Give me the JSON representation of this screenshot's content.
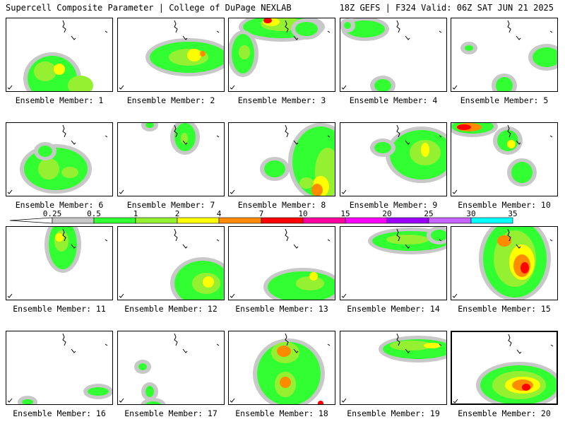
{
  "header": {
    "title": "Supercell Composite Parameter | College of DuPage NEXLAB",
    "run_info": "18Z GEFS | F324 Valid: 06Z SAT JUN 21 2025"
  },
  "panel_label_prefix": "Ensemble Member: ",
  "members": [
    {
      "label": "Ensemble Member: 1",
      "blobs": [
        [
          65,
          85,
          35,
          32,
          1
        ],
        [
          55,
          75,
          16,
          14,
          2
        ],
        [
          105,
          95,
          18,
          14,
          2
        ],
        [
          75,
          72,
          8,
          8,
          3
        ]
      ]
    },
    {
      "label": "Ensemble Member: 2",
      "blobs": [
        [
          100,
          55,
          55,
          22,
          1
        ],
        [
          100,
          55,
          28,
          12,
          2
        ],
        [
          108,
          52,
          10,
          9,
          3
        ],
        [
          120,
          50,
          4,
          4,
          4
        ]
      ]
    },
    {
      "label": "Ensemble Member: 3",
      "blobs": [
        [
          75,
          12,
          55,
          16,
          1
        ],
        [
          75,
          8,
          30,
          10,
          2
        ],
        [
          60,
          5,
          12,
          6,
          3
        ],
        [
          55,
          3,
          6,
          4,
          5
        ],
        [
          20,
          50,
          16,
          28,
          1
        ],
        [
          22,
          48,
          8,
          10,
          2
        ],
        [
          110,
          15,
          16,
          10,
          1
        ]
      ]
    },
    {
      "label": "Ensemble Member: 4",
      "blobs": [
        [
          35,
          15,
          28,
          12,
          1
        ],
        [
          60,
          95,
          12,
          9,
          1
        ],
        [
          10,
          10,
          5,
          5,
          1
        ]
      ]
    },
    {
      "label": "Ensemble Member: 5",
      "blobs": [
        [
          135,
          55,
          20,
          14,
          1
        ],
        [
          75,
          95,
          12,
          12,
          1
        ],
        [
          25,
          42,
          6,
          4,
          1
        ]
      ]
    },
    {
      "label": "Ensemble Member: 6",
      "blobs": [
        [
          70,
          65,
          45,
          30,
          1
        ],
        [
          60,
          65,
          15,
          15,
          2
        ],
        [
          90,
          70,
          12,
          8,
          2
        ],
        [
          55,
          40,
          10,
          8,
          1
        ]
      ]
    },
    {
      "label": "Ensemble Member: 7",
      "blobs": [
        [
          95,
          20,
          15,
          20,
          1
        ],
        [
          94,
          22,
          5,
          8,
          2
        ],
        [
          45,
          3,
          6,
          4,
          1
        ]
      ]
    },
    {
      "label": "Ensemble Member: 8",
      "blobs": [
        [
          130,
          55,
          40,
          50,
          1
        ],
        [
          140,
          70,
          18,
          35,
          2
        ],
        [
          130,
          90,
          12,
          15,
          3
        ],
        [
          125,
          95,
          8,
          9,
          4
        ],
        [
          65,
          65,
          15,
          12,
          1
        ],
        [
          110,
          85,
          10,
          8,
          2
        ]
      ]
    },
    {
      "label": "Ensemble Member: 9",
      "blobs": [
        [
          115,
          45,
          45,
          35,
          1
        ],
        [
          120,
          42,
          22,
          18,
          2
        ],
        [
          60,
          35,
          12,
          8,
          1
        ],
        [
          120,
          38,
          6,
          10,
          3
        ]
      ]
    },
    {
      "label": "Ensemble Member: 10",
      "blobs": [
        [
          30,
          5,
          30,
          10,
          1
        ],
        [
          25,
          6,
          18,
          6,
          4
        ],
        [
          18,
          6,
          10,
          4,
          5
        ],
        [
          80,
          25,
          15,
          15,
          1
        ],
        [
          85,
          30,
          6,
          6,
          3
        ],
        [
          100,
          70,
          15,
          15,
          1
        ]
      ]
    },
    {
      "label": "Ensemble Member: 11",
      "blobs": [
        [
          80,
          25,
          20,
          35,
          1
        ],
        [
          78,
          20,
          10,
          15,
          2
        ],
        [
          75,
          15,
          6,
          6,
          3
        ]
      ]
    },
    {
      "label": "Ensemble Member: 12",
      "blobs": [
        [
          120,
          80,
          40,
          32,
          1
        ],
        [
          125,
          80,
          20,
          15,
          2
        ],
        [
          128,
          78,
          8,
          8,
          3
        ]
      ]
    },
    {
      "label": "Ensemble Member: 13",
      "blobs": [
        [
          105,
          85,
          50,
          22,
          1
        ],
        [
          115,
          80,
          20,
          10,
          2
        ],
        [
          120,
          70,
          6,
          6,
          3
        ]
      ]
    },
    {
      "label": "Ensemble Member: 14",
      "blobs": [
        [
          100,
          20,
          55,
          14,
          1
        ],
        [
          95,
          18,
          30,
          7,
          2
        ],
        [
          140,
          12,
          12,
          8,
          1
        ]
      ]
    },
    {
      "label": "Ensemble Member: 15",
      "blobs": [
        [
          90,
          45,
          45,
          55,
          1
        ],
        [
          90,
          45,
          30,
          40,
          2
        ],
        [
          100,
          50,
          18,
          25,
          3
        ],
        [
          100,
          55,
          12,
          16,
          4
        ],
        [
          104,
          58,
          6,
          8,
          5
        ],
        [
          75,
          20,
          10,
          8,
          4
        ]
      ]
    },
    {
      "label": "Ensemble Member: 16",
      "blobs": [
        [
          130,
          85,
          15,
          6,
          1
        ],
        [
          30,
          100,
          8,
          4,
          1
        ]
      ]
    },
    {
      "label": "Ensemble Member: 17",
      "blobs": [
        [
          50,
          105,
          12,
          6,
          1
        ],
        [
          45,
          85,
          6,
          8,
          1
        ],
        [
          35,
          50,
          6,
          5,
          1
        ]
      ]
    },
    {
      "label": "Ensemble Member: 18",
      "blobs": [
        [
          85,
          60,
          45,
          45,
          1
        ],
        [
          80,
          30,
          20,
          15,
          2
        ],
        [
          78,
          28,
          10,
          8,
          4
        ],
        [
          80,
          75,
          15,
          18,
          2
        ],
        [
          80,
          72,
          8,
          8,
          4
        ],
        [
          130,
          102,
          4,
          4,
          5
        ]
      ]
    },
    {
      "label": "Ensemble Member: 19",
      "blobs": [
        [
          110,
          25,
          50,
          14,
          1
        ],
        [
          100,
          20,
          30,
          7,
          2
        ],
        [
          130,
          20,
          12,
          4,
          3
        ]
      ]
    },
    {
      "label": "Ensemble Member: 20",
      "blobs": [
        [
          95,
          75,
          55,
          28,
          1
        ],
        [
          95,
          75,
          38,
          20,
          2
        ],
        [
          100,
          75,
          25,
          12,
          3
        ],
        [
          100,
          75,
          15,
          8,
          4
        ],
        [
          105,
          78,
          6,
          5,
          5
        ]
      ]
    }
  ],
  "colorbar": {
    "ticks": [
      "0.25",
      "0.5",
      "1",
      "2",
      "4",
      "7",
      "10",
      "15",
      "20",
      "25",
      "30",
      "35"
    ],
    "colors": [
      "#c8c8c8",
      "#32ff32",
      "#96f032",
      "#ffff00",
      "#ff8c00",
      "#ff0000",
      "#ff00a0",
      "#ff00ff",
      "#9b00ff",
      "#c864ff",
      "#00ffff"
    ]
  },
  "legend_colors": {
    "c1": "#c8c8c8",
    "c2": "#32ff32",
    "c3": "#96f032",
    "c4": "#ffff00",
    "c5": "#ff8c00",
    "c6": "#ff0000"
  }
}
